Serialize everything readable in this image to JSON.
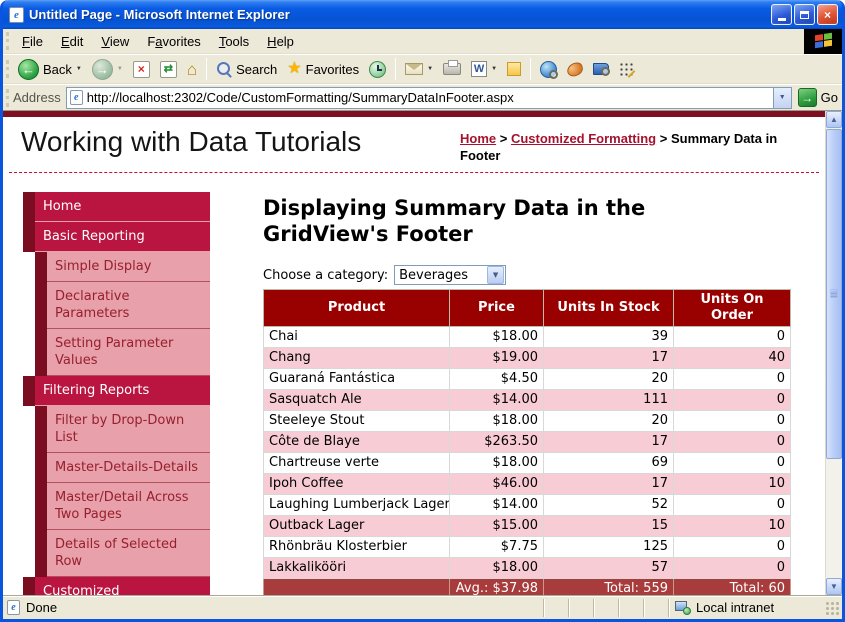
{
  "window": {
    "title": "Untitled Page - Microsoft Internet Explorer"
  },
  "icons": {
    "ie_e": "e",
    "close": "×",
    "back_arrow": "←",
    "forward_arrow": "→",
    "stop_glyph": "×",
    "refresh_glyph": "⇄",
    "home_glyph": "⌂",
    "star_glyph": "★",
    "caret": "▼",
    "up_arrow": "▲",
    "down_arrow": "▼",
    "go_arrow": "→",
    "word_letter": "W"
  },
  "menu": {
    "items": [
      {
        "pre": "",
        "accel": "F",
        "post": "ile"
      },
      {
        "pre": "",
        "accel": "E",
        "post": "dit"
      },
      {
        "pre": "",
        "accel": "V",
        "post": "iew"
      },
      {
        "pre": "F",
        "accel": "a",
        "post": "vorites"
      },
      {
        "pre": "",
        "accel": "T",
        "post": "ools"
      },
      {
        "pre": "",
        "accel": "H",
        "post": "elp"
      }
    ]
  },
  "toolbar": {
    "back_label": "Back",
    "search_label": "Search",
    "favorites_label": "Favorites"
  },
  "address": {
    "label": "Address",
    "url": "http://localhost:2302/Code/CustomFormatting/SummaryDataInFooter.aspx",
    "go_label": "Go"
  },
  "page": {
    "site_title": "Working with Data Tutorials",
    "breadcrumb": {
      "home": "Home",
      "sep1": " > ",
      "section": "Customized Formatting",
      "sep2": " > ",
      "current": "Summary Data in Footer"
    },
    "heading": "Displaying Summary Data in the GridView's Footer",
    "category_label": "Choose a category:",
    "category_value": "Beverages",
    "sidebar": {
      "items": [
        {
          "label": "Home"
        },
        {
          "label": "Basic Reporting"
        },
        {
          "label": "Simple Display"
        },
        {
          "label": "Declarative Parameters"
        },
        {
          "label": "Setting Parameter Values"
        },
        {
          "label": "Filtering Reports"
        },
        {
          "label": "Filter by Drop-Down List"
        },
        {
          "label": "Master-Details-Details"
        },
        {
          "label": "Master/Detail Across Two Pages"
        },
        {
          "label": "Details of Selected Row"
        },
        {
          "label": "Customized"
        }
      ]
    },
    "grid": {
      "headers": [
        "Product",
        "Price",
        "Units In Stock",
        "Units On Order"
      ],
      "rows": [
        [
          "Chai",
          "$18.00",
          "39",
          "0"
        ],
        [
          "Chang",
          "$19.00",
          "17",
          "40"
        ],
        [
          "Guaraná Fantástica",
          "$4.50",
          "20",
          "0"
        ],
        [
          "Sasquatch Ale",
          "$14.00",
          "111",
          "0"
        ],
        [
          "Steeleye Stout",
          "$18.00",
          "20",
          "0"
        ],
        [
          "Côte de Blaye",
          "$263.50",
          "17",
          "0"
        ],
        [
          "Chartreuse verte",
          "$18.00",
          "69",
          "0"
        ],
        [
          "Ipoh Coffee",
          "$46.00",
          "17",
          "10"
        ],
        [
          "Laughing Lumberjack Lager",
          "$14.00",
          "52",
          "0"
        ],
        [
          "Outback Lager",
          "$15.00",
          "15",
          "10"
        ],
        [
          "Rhönbräu Klosterbier",
          "$7.75",
          "125",
          "0"
        ],
        [
          "Lakkalikööri",
          "$18.00",
          "57",
          "0"
        ]
      ],
      "footer": [
        "",
        "Avg.: $37.98",
        "Total: 559",
        "Total: 60"
      ]
    }
  },
  "statusbar": {
    "done": "Done",
    "zone": "Local intranet"
  },
  "colors": {
    "titlebar_blue": "#0855D6",
    "chrome_beige": "#ECE9D8",
    "grid_header_red": "#990000",
    "grid_footer_red": "#A83B3B",
    "row_pink": "#F8CCD4",
    "sidebar_red": "#B91540",
    "sidebar_dark": "#7B0D20",
    "sidebar_pink": "#E8A0AA",
    "link_red": "#A5112F",
    "go_green": "#2E9E3E"
  }
}
